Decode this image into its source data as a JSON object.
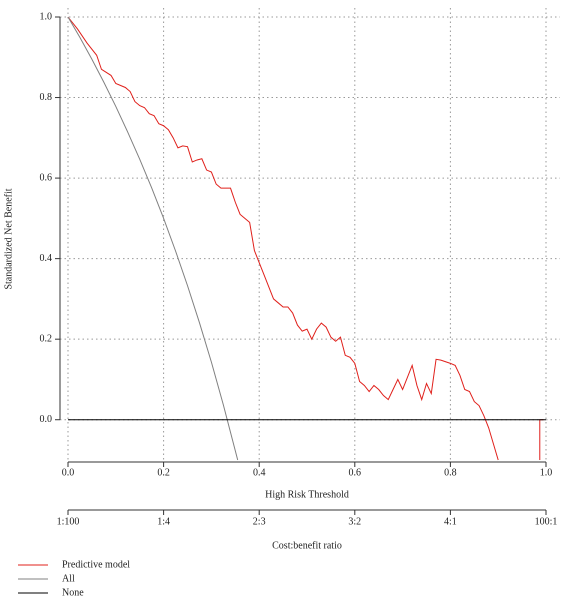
{
  "chart_data": {
    "type": "line",
    "xlabel": "High Risk Threshold",
    "ylabel": "Standardized Net Benefit",
    "x2label": "Cost:benefit ratio",
    "xlim": [
      0,
      1
    ],
    "ylim": [
      -0.1,
      1.0
    ],
    "xticks": [
      {
        "value": 0,
        "label": "0.0"
      },
      {
        "value": 0.2,
        "label": "0.2"
      },
      {
        "value": 0.4,
        "label": "0.4"
      },
      {
        "value": 0.6,
        "label": "0.6"
      },
      {
        "value": 0.8,
        "label": "0.8"
      },
      {
        "value": 1,
        "label": "1.0"
      }
    ],
    "x2ticks": [
      {
        "value": 0,
        "label": "1:100"
      },
      {
        "value": 0.2,
        "label": "1:4"
      },
      {
        "value": 0.4,
        "label": "2:3"
      },
      {
        "value": 0.6,
        "label": "3:2"
      },
      {
        "value": 0.8,
        "label": "4:1"
      },
      {
        "value": 1,
        "label": "100:1"
      }
    ],
    "yticks": [
      {
        "value": 0,
        "label": "0.0"
      },
      0.2,
      0.4,
      0.6,
      0.8,
      {
        "value": 1,
        "label": "1.0"
      }
    ],
    "grid": true,
    "series": [
      {
        "name": "Predictive model",
        "color": "#e0201b",
        "x": [
          0,
          0.02,
          0.04,
          0.06,
          0.07,
          0.09,
          0.1,
          0.12,
          0.13,
          0.14,
          0.15,
          0.16,
          0.17,
          0.18,
          0.19,
          0.2,
          0.21,
          0.22,
          0.23,
          0.24,
          0.25,
          0.26,
          0.27,
          0.28,
          0.29,
          0.3,
          0.31,
          0.32,
          0.34,
          0.35,
          0.36,
          0.37,
          0.38,
          0.39,
          0.4,
          0.41,
          0.42,
          0.43,
          0.44,
          0.45,
          0.46,
          0.47,
          0.48,
          0.49,
          0.5,
          0.51,
          0.52,
          0.53,
          0.54,
          0.55,
          0.56,
          0.57,
          0.58,
          0.59,
          0.6,
          0.61,
          0.62,
          0.63,
          0.64,
          0.65,
          0.66,
          0.67,
          0.68,
          0.69,
          0.7,
          0.71,
          0.72,
          0.73,
          0.74,
          0.75,
          0.76,
          0.77,
          0.78,
          0.79,
          0.8,
          0.81,
          0.82,
          0.83,
          0.84,
          0.85,
          0.86,
          0.87,
          0.88,
          0.89,
          0.9,
          0.95,
          0.987,
          0.987,
          0.995
        ],
        "values": [
          1.0,
          0.97,
          0.935,
          0.905,
          0.87,
          0.855,
          0.835,
          0.825,
          0.815,
          0.79,
          0.78,
          0.775,
          0.76,
          0.755,
          0.735,
          0.73,
          0.72,
          0.7,
          0.675,
          0.68,
          0.678,
          0.64,
          0.645,
          0.648,
          0.62,
          0.615,
          0.585,
          0.575,
          0.575,
          0.54,
          0.51,
          0.5,
          0.49,
          0.42,
          0.39,
          0.36,
          0.33,
          0.3,
          0.29,
          0.28,
          0.28,
          0.265,
          0.235,
          0.22,
          0.225,
          0.2,
          0.225,
          0.24,
          0.23,
          0.205,
          0.195,
          0.205,
          0.16,
          0.155,
          0.14,
          0.095,
          0.085,
          0.07,
          0.085,
          0.075,
          0.06,
          0.05,
          0.075,
          0.1,
          0.075,
          0.105,
          0.135,
          0.085,
          0.05,
          0.09,
          0.065,
          0.15,
          0.148,
          0.144,
          0.14,
          0.135,
          0.11,
          0.075,
          0.07,
          0.045,
          0.035,
          0.01,
          -0.02,
          -0.06,
          -0.1,
          null,
          -0.1,
          0,
          0
        ]
      },
      {
        "name": "All",
        "color": "#808080",
        "x": [
          0,
          0.025,
          0.05,
          0.075,
          0.1,
          0.125,
          0.15,
          0.175,
          0.2,
          0.225,
          0.25,
          0.275,
          0.3,
          0.325,
          0.35,
          0.355
        ],
        "values": [
          1,
          0.949,
          0.895,
          0.838,
          0.778,
          0.714,
          0.647,
          0.576,
          0.5,
          0.419,
          0.333,
          0.241,
          0.143,
          0.037,
          -0.077,
          -0.1
        ]
      },
      {
        "name": "None",
        "color": "#000000",
        "x": [
          0,
          1
        ],
        "values": [
          0,
          0
        ]
      }
    ]
  }
}
